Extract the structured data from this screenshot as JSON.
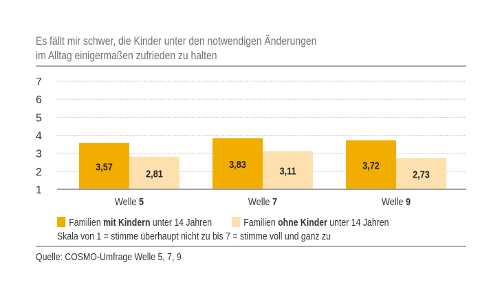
{
  "chart_data": {
    "type": "bar",
    "title": "Es fällt mir schwer, die Kinder unter den notwendigen Änderungen im Alltag einigermaßen zufrieden zu halten",
    "title_lines": [
      "Es fällt mir schwer, die Kinder unter den notwendigen Änderungen",
      "im Alltag einigermaßen zufrieden zu halten"
    ],
    "categories": [
      {
        "prefix": "Welle ",
        "bold": "5"
      },
      {
        "prefix": "Welle ",
        "bold": "7"
      },
      {
        "prefix": "Welle ",
        "bold": "9"
      }
    ],
    "series": [
      {
        "name": "Familien mit Kindern unter 14 Jahren",
        "legend": {
          "pre": "Familien ",
          "bold": "mit Kindern",
          "post": " unter 14 Jahren"
        },
        "color": "#f2ae00",
        "values": [
          3.57,
          3.83,
          3.72
        ],
        "labels": [
          "3,57",
          "3,83",
          "3,72"
        ]
      },
      {
        "name": "Familien ohne Kinder unter 14 Jahren",
        "legend": {
          "pre": "Familien ",
          "bold": "ohne Kinder",
          "post": " unter 14 Jahren"
        },
        "color": "#fde0ae",
        "values": [
          2.81,
          3.11,
          2.73
        ],
        "labels": [
          "2,81",
          "3,11",
          "2,73"
        ]
      }
    ],
    "ylim": [
      1,
      7
    ],
    "yticks": [
      "1",
      "2",
      "3",
      "4",
      "5",
      "6",
      "7"
    ],
    "grid": true,
    "legend_position": "bottom",
    "note": "Skala von 1 = stimme überhaupt nicht zu bis 7 = stimme voll und ganz zu",
    "source": "Quelle: COSMO-Umfrage Welle 5, 7, 9"
  }
}
